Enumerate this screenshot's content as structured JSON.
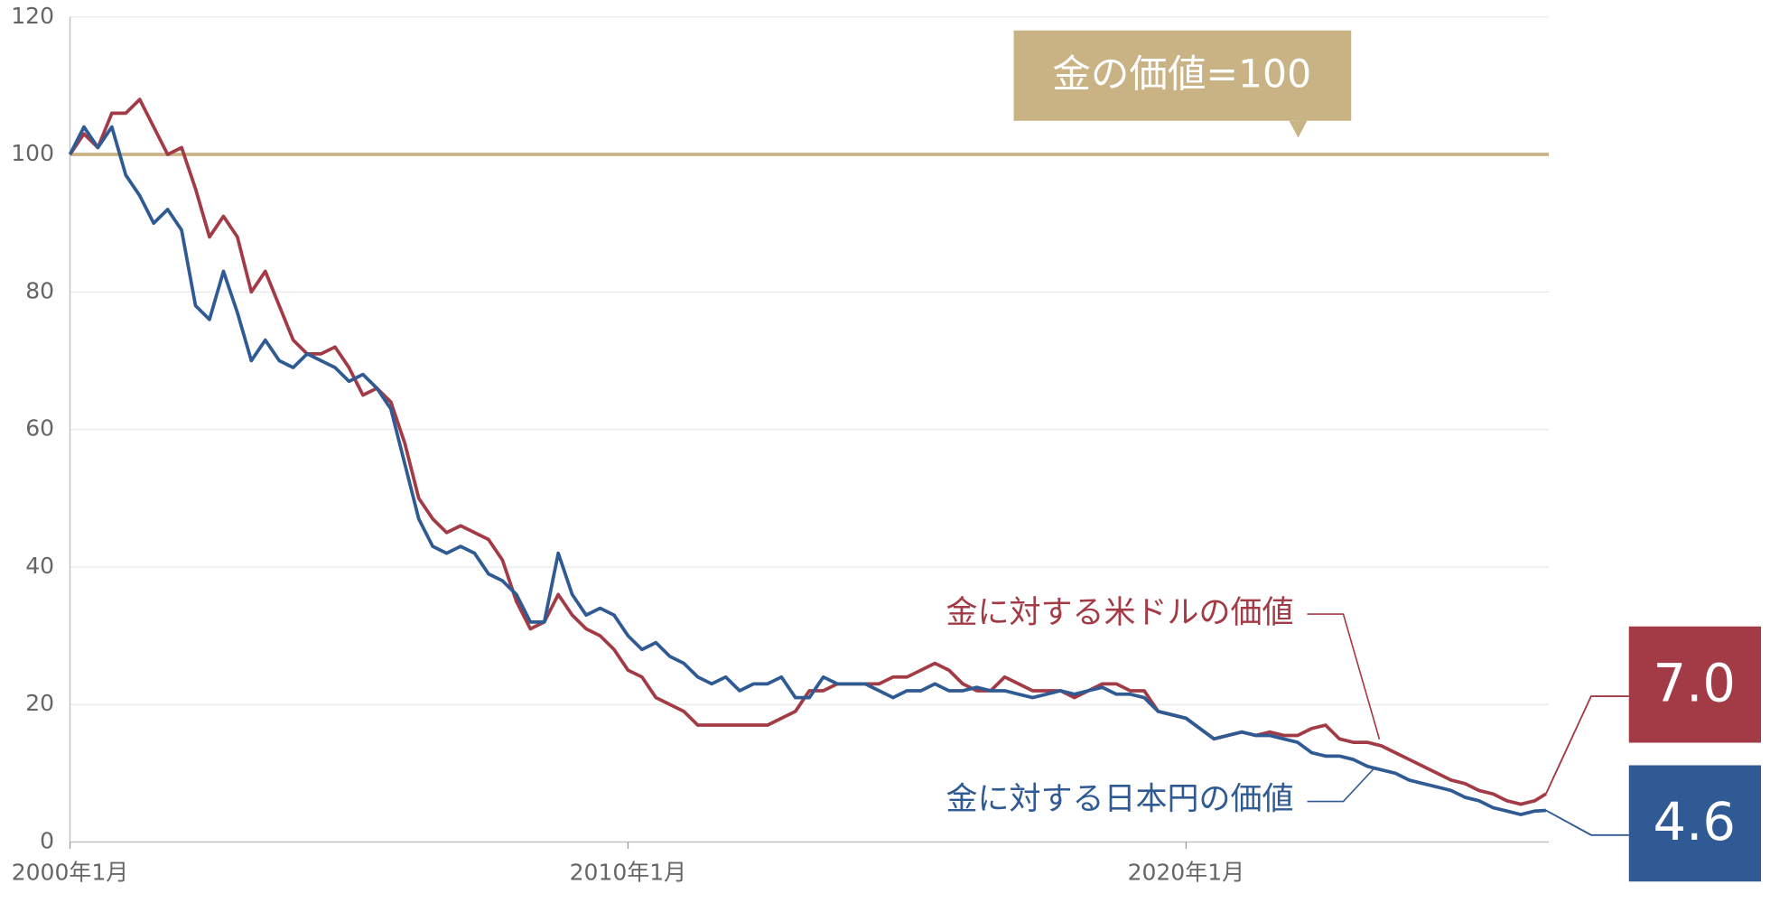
{
  "chart_data": {
    "type": "line",
    "x": [
      2000,
      2000.25,
      2000.5,
      2000.75,
      2001,
      2001.25,
      2001.5,
      2001.75,
      2002,
      2002.25,
      2002.5,
      2002.75,
      2003,
      2003.25,
      2003.5,
      2003.75,
      2004,
      2004.25,
      2004.5,
      2004.75,
      2005,
      2005.25,
      2005.5,
      2005.75,
      2006,
      2006.25,
      2006.5,
      2006.75,
      2007,
      2007.25,
      2007.5,
      2007.75,
      2008,
      2008.25,
      2008.5,
      2008.75,
      2009,
      2009.25,
      2009.5,
      2009.75,
      2010,
      2010.25,
      2010.5,
      2010.75,
      2011,
      2011.25,
      2011.5,
      2011.75,
      2012,
      2012.25,
      2012.5,
      2012.75,
      2013,
      2013.25,
      2013.5,
      2013.75,
      2014,
      2014.25,
      2014.5,
      2014.75,
      2015,
      2015.25,
      2015.5,
      2015.75,
      2016,
      2016.25,
      2016.5,
      2016.75,
      2017,
      2017.25,
      2017.5,
      2017.75,
      2018,
      2018.25,
      2018.5,
      2018.75,
      2019,
      2019.25,
      2019.5,
      2019.75,
      2020,
      2020.25,
      2020.5,
      2020.75,
      2021,
      2021.25,
      2021.5,
      2021.75,
      2022,
      2022.25,
      2022.5,
      2022.75,
      2023,
      2023.25,
      2023.5,
      2023.75,
      2024,
      2024.25,
      2024.5,
      2024.75,
      2025,
      2025.25,
      2025.5,
      2025.75,
      2026,
      2026.25,
      2026.45
    ],
    "series": [
      {
        "name": "金に対する米ドルの価値",
        "color": "#a23b45",
        "end_label": "7.0",
        "values": [
          100,
          103,
          101,
          106,
          106,
          108,
          104,
          100,
          101,
          95,
          88,
          91,
          88,
          80,
          83,
          78,
          73,
          71,
          71,
          72,
          69,
          65,
          66,
          64,
          58,
          50,
          47,
          45,
          46,
          45,
          44,
          41,
          35,
          31,
          32,
          36,
          33,
          31,
          30,
          28,
          25,
          24,
          21,
          20,
          19,
          17,
          17,
          17,
          17,
          17,
          17,
          18,
          19,
          22,
          22,
          23,
          23,
          23,
          23,
          24,
          24,
          25,
          26,
          25,
          23,
          22,
          22,
          24,
          23,
          22,
          22,
          22,
          21,
          22,
          23,
          23,
          22,
          22,
          19,
          18.5,
          18,
          16.5,
          15,
          15.5,
          16,
          15.5,
          16,
          15.5,
          15.5,
          16.5,
          17,
          15,
          14.5,
          14.5,
          14,
          13,
          12,
          11,
          10,
          9,
          8.5,
          7.5,
          7,
          6,
          5.5,
          6,
          7
        ]
      },
      {
        "name": "金に対する日本円の価値",
        "color": "#2f5a93",
        "end_label": "4.6",
        "values": [
          100,
          104,
          101,
          104,
          97,
          94,
          90,
          92,
          89,
          78,
          76,
          83,
          77,
          70,
          73,
          70,
          69,
          71,
          70,
          69,
          67,
          68,
          66,
          63,
          55,
          47,
          43,
          42,
          43,
          42,
          39,
          38,
          36,
          32,
          32,
          42,
          36,
          33,
          34,
          33,
          30,
          28,
          29,
          27,
          26,
          24,
          23,
          24,
          22,
          23,
          23,
          24,
          21,
          21,
          24,
          23,
          23,
          23,
          22,
          21,
          22,
          22,
          23,
          22,
          22,
          22.5,
          22,
          22,
          21.5,
          21,
          21.5,
          22,
          21.5,
          22,
          22.5,
          21.5,
          21.5,
          21,
          19,
          18.5,
          18,
          16.5,
          15,
          15.5,
          16,
          15.5,
          15.5,
          15,
          14.5,
          13,
          12.5,
          12.5,
          12,
          11,
          10.5,
          10,
          9,
          8.5,
          8,
          7.5,
          6.5,
          6,
          5,
          4.5,
          4,
          4.5,
          4.6
        ]
      }
    ],
    "xlim": [
      2000,
      2026.5
    ],
    "xticks": [
      {
        "value": 2000,
        "label": "2000年1月"
      },
      {
        "value": 2010,
        "label": "2010年1月"
      },
      {
        "value": 2020,
        "label": "2020年1月"
      }
    ],
    "ylim": [
      0,
      120
    ],
    "yticks": [
      0,
      20,
      40,
      60,
      80,
      100,
      120
    ],
    "grid": true,
    "reference_line": {
      "value": 100,
      "label": "金の価値=100",
      "color": "#c9b283"
    }
  }
}
